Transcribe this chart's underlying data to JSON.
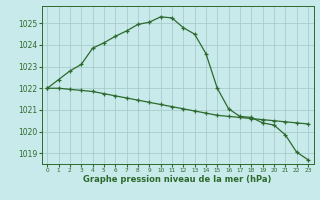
{
  "line1_x": [
    0,
    1,
    2,
    3,
    4,
    5,
    6,
    7,
    8,
    9,
    10,
    11,
    12,
    13,
    14,
    15,
    16,
    17,
    18,
    19,
    20,
    21,
    22,
    23
  ],
  "line1_y": [
    1022.0,
    1022.4,
    1022.8,
    1023.1,
    1023.85,
    1024.1,
    1024.4,
    1024.65,
    1024.95,
    1025.05,
    1025.3,
    1025.25,
    1024.8,
    1024.5,
    1023.6,
    1022.0,
    1021.05,
    1020.7,
    1020.65,
    1020.4,
    1020.3,
    1019.85,
    1019.05,
    1018.7
  ],
  "line2_x": [
    0,
    1,
    2,
    3,
    4,
    5,
    6,
    7,
    8,
    9,
    10,
    11,
    12,
    13,
    14,
    15,
    16,
    17,
    18,
    19,
    20,
    21,
    22,
    23
  ],
  "line2_y": [
    1022.0,
    1022.0,
    1021.95,
    1021.9,
    1021.85,
    1021.75,
    1021.65,
    1021.55,
    1021.45,
    1021.35,
    1021.25,
    1021.15,
    1021.05,
    1020.95,
    1020.85,
    1020.75,
    1020.7,
    1020.65,
    1020.6,
    1020.55,
    1020.5,
    1020.45,
    1020.4,
    1020.35
  ],
  "line_color": "#2d6a2d",
  "bg_color": "#c8eaea",
  "grid_color": "#a8cccc",
  "xlabel": "Graphe pression niveau de la mer (hPa)",
  "ylim": [
    1018.5,
    1025.8
  ],
  "yticks": [
    1019,
    1020,
    1021,
    1022,
    1023,
    1024,
    1025
  ],
  "xticks": [
    0,
    1,
    2,
    3,
    4,
    5,
    6,
    7,
    8,
    9,
    10,
    11,
    12,
    13,
    14,
    15,
    16,
    17,
    18,
    19,
    20,
    21,
    22,
    23
  ],
  "marker": "+"
}
